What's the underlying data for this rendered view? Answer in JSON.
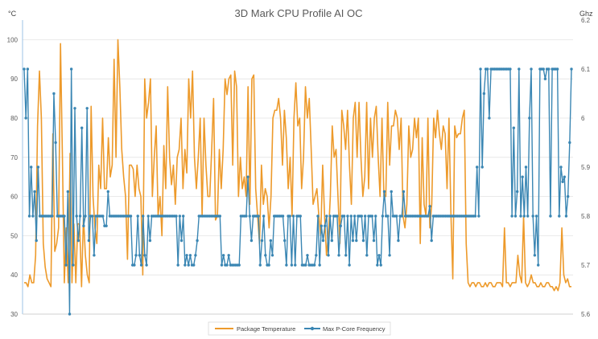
{
  "chart_data": {
    "type": "line",
    "title": "3D Mark CPU Profile AI OC",
    "ylabel_left": "°C",
    "ylabel_right": "Ghz",
    "ylim_left": [
      30,
      105
    ],
    "ylim_right": [
      5.6,
      6.2
    ],
    "yticks_left": [
      "30",
      "40",
      "50",
      "60",
      "70",
      "80",
      "90",
      "100"
    ],
    "yticks_right": [
      "5.6",
      "5.7",
      "5.8",
      "5.9",
      "6",
      "6.1",
      "6.2"
    ],
    "gridlines": true,
    "legend_position": "bottom-center",
    "series": [
      {
        "name": "Package Temperature",
        "axis": "left",
        "color": "#ED9A2B",
        "values": [
          38,
          38,
          37,
          40,
          38,
          38,
          45,
          78,
          92,
          80,
          48,
          42,
          39,
          38,
          37,
          76,
          46,
          48,
          52,
          99,
          70,
          38,
          52,
          38,
          71,
          38,
          53,
          38,
          53,
          53,
          37,
          55,
          45,
          40,
          38,
          83,
          60,
          52,
          48,
          68,
          62,
          80,
          62,
          62,
          75,
          65,
          68,
          95,
          70,
          100,
          88,
          72,
          65,
          60,
          44,
          68,
          68,
          67,
          60,
          68,
          62,
          60,
          40,
          90,
          80,
          84,
          90,
          60,
          70,
          78,
          55,
          60,
          50,
          73,
          62,
          88,
          70,
          63,
          68,
          58,
          70,
          72,
          80,
          62,
          72,
          66,
          90,
          80,
          92,
          70,
          62,
          70,
          80,
          55,
          80,
          68,
          60,
          60,
          72,
          85,
          54,
          55,
          72,
          62,
          72,
          90,
          86,
          90,
          91,
          68,
          92,
          88,
          60,
          70,
          62,
          65,
          60,
          88,
          58,
          90,
          91,
          62,
          55,
          48,
          68,
          58,
          62,
          60,
          52,
          60,
          80,
          82,
          82,
          85,
          80,
          68,
          82,
          75,
          62,
          70,
          55,
          80,
          89,
          78,
          80,
          62,
          70,
          88,
          80,
          85,
          72,
          58,
          60,
          62,
          55,
          50,
          68,
          55,
          45,
          50,
          60,
          78,
          70,
          72,
          60,
          48,
          82,
          78,
          72,
          82,
          68,
          58,
          80,
          84,
          70,
          84,
          70,
          60,
          65,
          84,
          62,
          80,
          70,
          80,
          83,
          70,
          60,
          80,
          60,
          60,
          84,
          68,
          78,
          78,
          82,
          80,
          72,
          80,
          55,
          52,
          58,
          78,
          70,
          72,
          80,
          75,
          80,
          48,
          75,
          58,
          55,
          80,
          52,
          58,
          80,
          75,
          82,
          76,
          72,
          78,
          76,
          62,
          80,
          56,
          39,
          78,
          75,
          76,
          76,
          80,
          82,
          48,
          38,
          37,
          38,
          38,
          37,
          38,
          38,
          37,
          37,
          38,
          37,
          38,
          38,
          37,
          37,
          38,
          38,
          38,
          37,
          52,
          38,
          38,
          37,
          38,
          38,
          38,
          45,
          40,
          38,
          55,
          38,
          37,
          38,
          40,
          38,
          38,
          37,
          37,
          38,
          37,
          37,
          38,
          38,
          37,
          37,
          36,
          37,
          36,
          38,
          52,
          40,
          38,
          39,
          37,
          37
        ]
      },
      {
        "name": "Max P-Core Frequency",
        "axis": "right",
        "color": "#3A86B3",
        "values": [
          6.1,
          6.0,
          6.1,
          5.8,
          5.9,
          5.8,
          5.85,
          5.75,
          5.9,
          5.8,
          5.8,
          5.8,
          5.8,
          5.8,
          5.8,
          5.8,
          5.8,
          6.05,
          5.95,
          5.8,
          5.8,
          5.8,
          5.8,
          5.8,
          5.7,
          5.85,
          5.6,
          6.1,
          5.7,
          6.02,
          5.8,
          5.75,
          5.8,
          5.98,
          5.78,
          5.8,
          6.02,
          5.75,
          5.8,
          5.8,
          5.72,
          5.8,
          5.8,
          5.8,
          5.8,
          5.8,
          5.78,
          5.78,
          5.85,
          5.8,
          5.8,
          5.8,
          5.8,
          5.8,
          5.8,
          5.8,
          5.8,
          5.8,
          5.8,
          5.8,
          5.8,
          5.8,
          5.7,
          5.7,
          5.72,
          5.8,
          5.72,
          5.7,
          5.8,
          5.72,
          5.7,
          5.8,
          5.75,
          5.8,
          5.8,
          5.8,
          5.8,
          5.8,
          5.8,
          5.8,
          5.8,
          5.8,
          5.8,
          5.8,
          5.8,
          5.8,
          5.8,
          5.8,
          5.7,
          5.8,
          5.75,
          5.8,
          5.7,
          5.72,
          5.7,
          5.72,
          5.7,
          5.7,
          5.72,
          5.75,
          5.8,
          5.8,
          5.8,
          5.8,
          5.8,
          5.8,
          5.8,
          5.8,
          5.8,
          5.8,
          5.8,
          5.8,
          5.8,
          5.7,
          5.72,
          5.7,
          5.7,
          5.72,
          5.7,
          5.7,
          5.7,
          5.7,
          5.7,
          5.7,
          5.8,
          5.8,
          5.8,
          5.8,
          5.88,
          5.8,
          5.75,
          5.8,
          5.8,
          5.8,
          5.8,
          5.7,
          5.75,
          5.8,
          5.72,
          5.7,
          5.7,
          5.75,
          5.72,
          5.8,
          5.8,
          5.8,
          5.8,
          5.8,
          5.8,
          5.75,
          5.7,
          5.8,
          5.8,
          5.7,
          5.8,
          5.7,
          5.8,
          5.8,
          5.8,
          5.7,
          5.7,
          5.7,
          5.72,
          5.7,
          5.7,
          5.7,
          5.7,
          5.72,
          5.8,
          5.7,
          5.78,
          5.75,
          5.78,
          5.8,
          5.72,
          5.8,
          5.75,
          5.8,
          5.8,
          5.8,
          5.72,
          5.78,
          5.8,
          5.8,
          5.72,
          5.8,
          5.7,
          5.8,
          5.75,
          5.8,
          5.75,
          5.8,
          5.8,
          5.8,
          5.75,
          5.8,
          5.72,
          5.8,
          5.8,
          5.8,
          5.75,
          5.8,
          5.7,
          5.72,
          5.7,
          5.8,
          5.85,
          5.8,
          5.8,
          5.72,
          5.85,
          5.8,
          5.8,
          5.8,
          5.75,
          5.8,
          5.8,
          5.85,
          5.8,
          5.8,
          5.8,
          5.8,
          5.8,
          5.8,
          5.8,
          5.8,
          5.8,
          5.8,
          5.8,
          5.8,
          5.8,
          5.8,
          5.82,
          5.75,
          5.8,
          5.8,
          5.8,
          5.8,
          5.8,
          5.8,
          5.8,
          5.8,
          5.8,
          5.8,
          5.8,
          5.8,
          5.8,
          5.8,
          5.8,
          5.8,
          5.8,
          5.8,
          5.8,
          5.8,
          5.8,
          5.8,
          5.8,
          5.8,
          5.8,
          5.9,
          5.8,
          6.1,
          5.9,
          6.05,
          6.1,
          6.1,
          6.0,
          6.1,
          6.1,
          6.1,
          6.1,
          6.1,
          6.1,
          6.1,
          6.1,
          6.1,
          6.1,
          6.1,
          6.1,
          5.8,
          5.98,
          5.8,
          5.85,
          6.1,
          5.8,
          5.88,
          5.8,
          5.9,
          5.8,
          6.0,
          6.1,
          5.8,
          5.72,
          5.8,
          5.7,
          6.1,
          6.1,
          6.1,
          6.08,
          6.1,
          6.1,
          5.8,
          6.1,
          6.1,
          6.1,
          6.1,
          5.8,
          5.9,
          5.87,
          5.88,
          5.8,
          5.84,
          5.95,
          6.1
        ]
      }
    ],
    "legend": [
      "Package Temperature",
      "Max P-Core Frequency"
    ]
  }
}
